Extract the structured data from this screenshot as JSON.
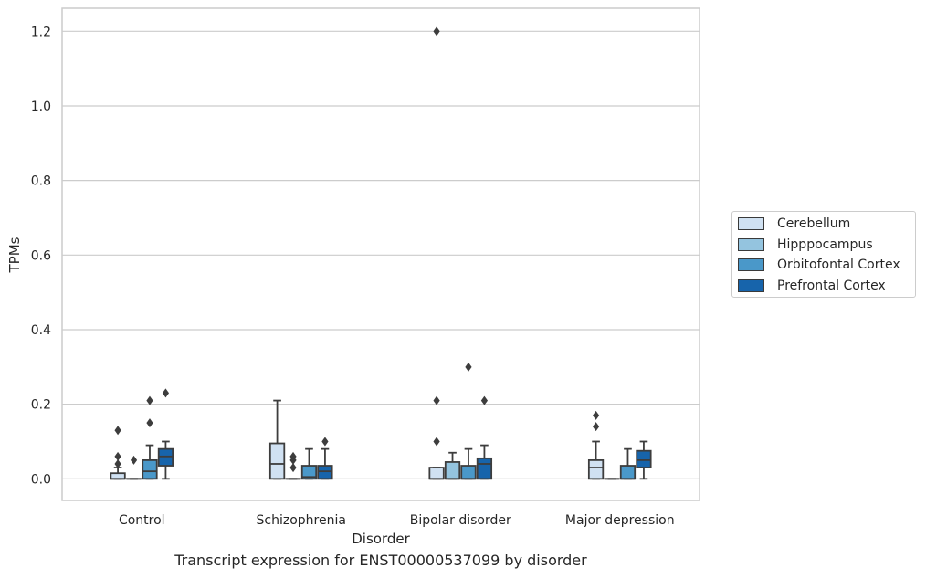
{
  "chart_data": {
    "type": "box",
    "title": "",
    "caption": "Transcript expression for ENST00000537099 by disorder",
    "xlabel": "Disorder",
    "ylabel": "TPMs",
    "ylim": [
      -0.058,
      1.262
    ],
    "yticks": [
      "0.0",
      "0.2",
      "0.4",
      "0.6",
      "0.8",
      "1.0",
      "1.2"
    ],
    "categories": [
      "Control",
      "Schizophrenia",
      "Bipolar disorder",
      "Major depression"
    ],
    "grid": true,
    "legend_position": "right",
    "series": [
      {
        "name": "Cerebellum",
        "color": "#d0e1f2",
        "boxes": [
          {
            "q1": 0.0,
            "median": 0.0,
            "q3": 0.015,
            "whisker_low": 0.0,
            "whisker_high": 0.03,
            "outliers": [
              0.04,
              0.06,
              0.13
            ]
          },
          {
            "q1": 0.0,
            "median": 0.04,
            "q3": 0.095,
            "whisker_low": 0.0,
            "whisker_high": 0.21,
            "outliers": []
          },
          {
            "q1": 0.0,
            "median": 0.0,
            "q3": 0.03,
            "whisker_low": 0.0,
            "whisker_high": 0.03,
            "outliers": [
              0.1,
              0.21,
              1.2
            ]
          },
          {
            "q1": 0.0,
            "median": 0.03,
            "q3": 0.05,
            "whisker_low": 0.0,
            "whisker_high": 0.1,
            "outliers": [
              0.14,
              0.17
            ]
          }
        ]
      },
      {
        "name": "Hipppocampus",
        "color": "#94c4df",
        "boxes": [
          {
            "q1": 0.0,
            "median": 0.0,
            "q3": 0.0,
            "whisker_low": 0.0,
            "whisker_high": 0.0,
            "outliers": [
              0.05
            ]
          },
          {
            "q1": 0.0,
            "median": 0.0,
            "q3": 0.0,
            "whisker_low": 0.0,
            "whisker_high": 0.0,
            "outliers": [
              0.03,
              0.05,
              0.06
            ]
          },
          {
            "q1": 0.0,
            "median": 0.0,
            "q3": 0.045,
            "whisker_low": 0.0,
            "whisker_high": 0.07,
            "outliers": []
          },
          {
            "q1": 0.0,
            "median": 0.0,
            "q3": 0.0,
            "whisker_low": 0.0,
            "whisker_high": 0.0,
            "outliers": []
          }
        ]
      },
      {
        "name": "Orbitofontal Cortex",
        "color": "#4a98c9",
        "boxes": [
          {
            "q1": 0.0,
            "median": 0.02,
            "q3": 0.05,
            "whisker_low": 0.0,
            "whisker_high": 0.09,
            "outliers": [
              0.15,
              0.21
            ]
          },
          {
            "q1": 0.0,
            "median": 0.005,
            "q3": 0.035,
            "whisker_low": 0.0,
            "whisker_high": 0.08,
            "outliers": []
          },
          {
            "q1": 0.0,
            "median": 0.0,
            "q3": 0.035,
            "whisker_low": 0.0,
            "whisker_high": 0.08,
            "outliers": [
              0.3
            ]
          },
          {
            "q1": 0.0,
            "median": 0.0,
            "q3": 0.035,
            "whisker_low": 0.0,
            "whisker_high": 0.08,
            "outliers": []
          }
        ]
      },
      {
        "name": "Prefrontal Cortex",
        "color": "#1764ab",
        "boxes": [
          {
            "q1": 0.035,
            "median": 0.06,
            "q3": 0.08,
            "whisker_low": 0.0,
            "whisker_high": 0.1,
            "outliers": [
              0.23
            ]
          },
          {
            "q1": 0.0,
            "median": 0.02,
            "q3": 0.035,
            "whisker_low": 0.0,
            "whisker_high": 0.08,
            "outliers": [
              0.1
            ]
          },
          {
            "q1": 0.0,
            "median": 0.04,
            "q3": 0.055,
            "whisker_low": 0.0,
            "whisker_high": 0.09,
            "outliers": [
              0.21
            ]
          },
          {
            "q1": 0.03,
            "median": 0.05,
            "q3": 0.075,
            "whisker_low": 0.0,
            "whisker_high": 0.1,
            "outliers": []
          }
        ]
      }
    ]
  }
}
